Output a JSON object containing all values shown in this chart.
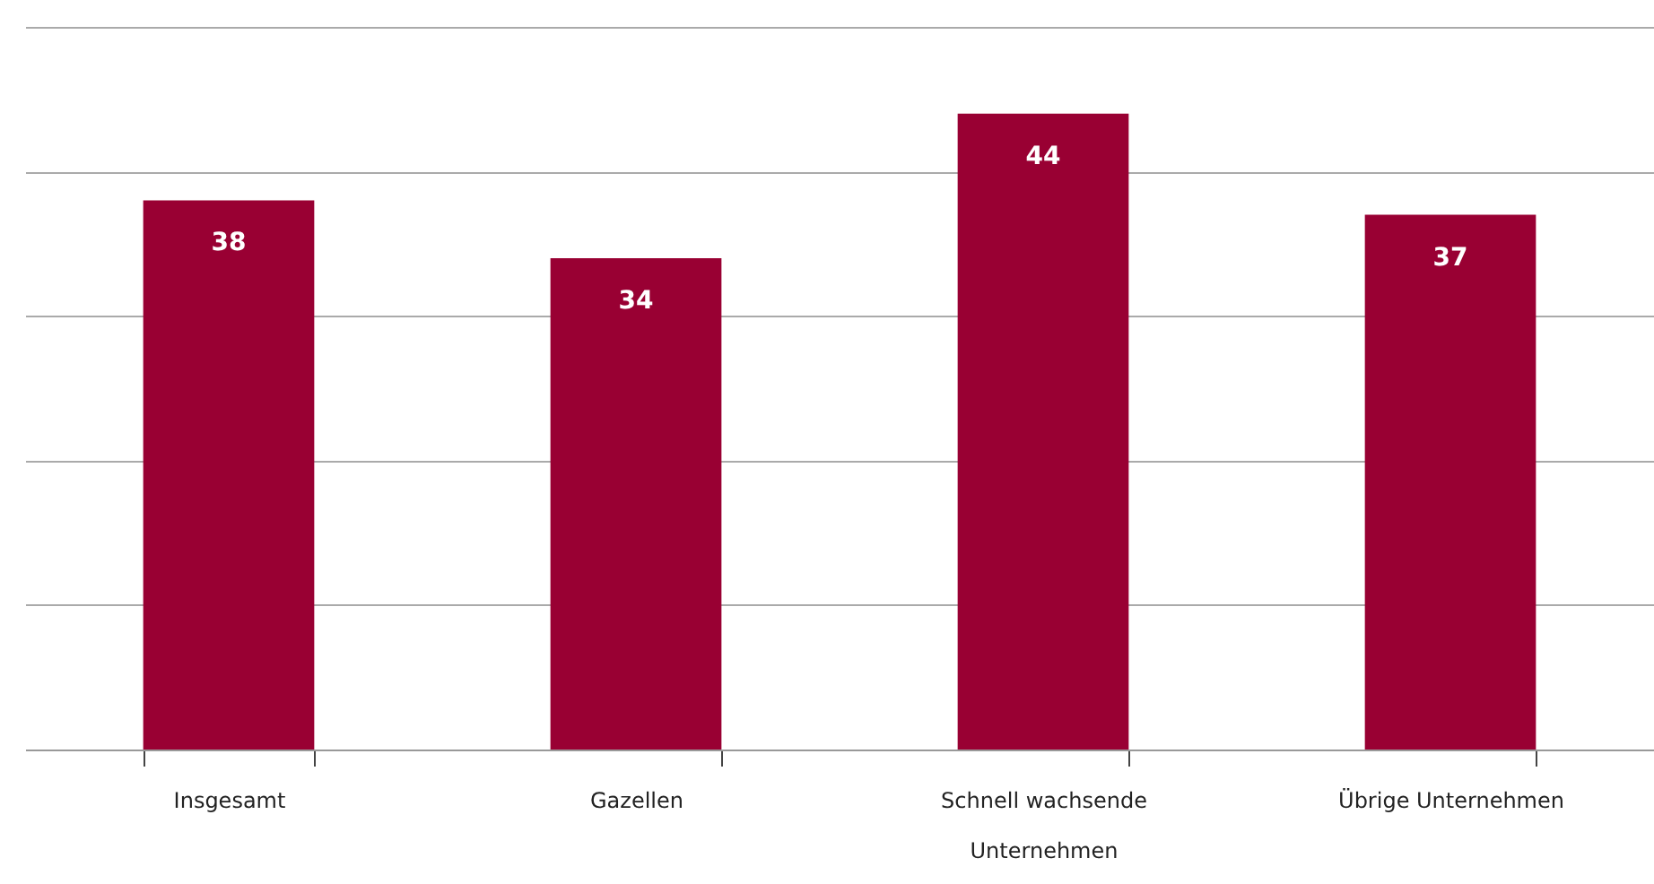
{
  "chart_data": {
    "type": "bar",
    "categories": [
      "Insgesamt",
      "Gazellen",
      "Schnell wachsende Unternehmen",
      "Übrige Unternehmen"
    ],
    "values": [
      38,
      34,
      44,
      37
    ],
    "color": "#990033",
    "data_labels": true,
    "ylim": [
      0,
      50
    ],
    "yticks": [
      {
        "value": 0,
        "label": null
      },
      {
        "value": 10,
        "label": null
      },
      {
        "value": 20,
        "label": null
      },
      {
        "value": 30,
        "label": null
      },
      {
        "value": 40,
        "label": null
      },
      {
        "value": 50,
        "label": null
      }
    ],
    "grid": "y",
    "tick_labels": "x"
  }
}
